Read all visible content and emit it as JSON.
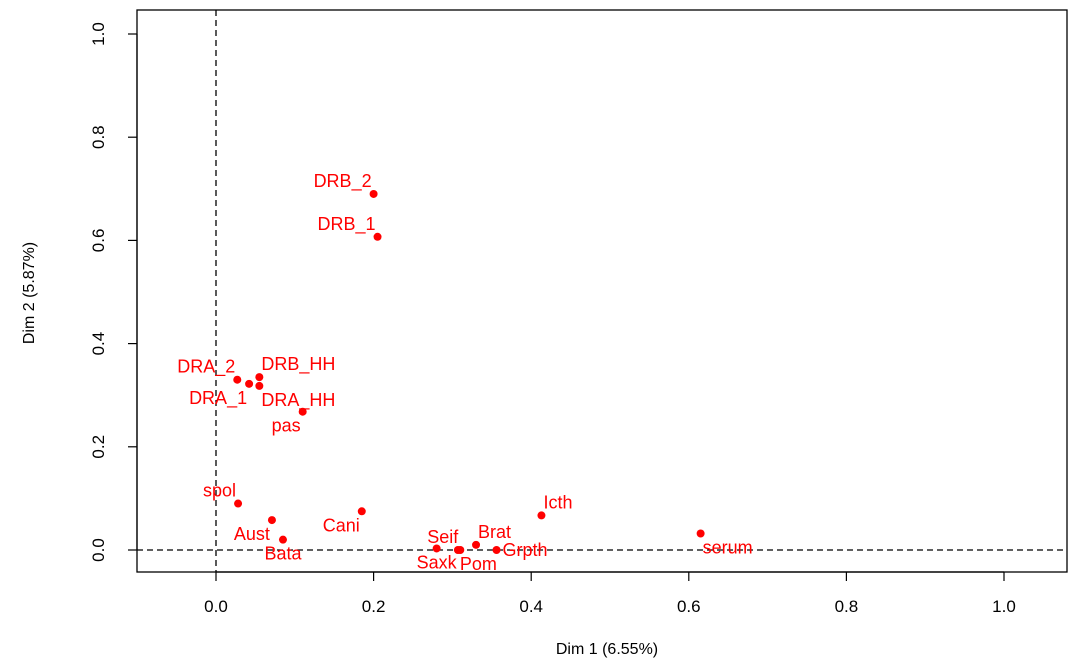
{
  "chart_data": {
    "type": "scatter",
    "title": "",
    "xlabel": "Dim 1 (6.55%)",
    "ylabel": "Dim 2 (5.87%)",
    "xlim": [
      -0.1,
      1.1
    ],
    "ylim": [
      -0.04,
      1.04
    ],
    "xticks": [
      0.0,
      0.2,
      0.4,
      0.6,
      0.8,
      1.0
    ],
    "xtick_labels": [
      "0.0",
      "0.2",
      "0.4",
      "0.6",
      "0.8",
      "1.0"
    ],
    "yticks": [
      0.0,
      0.2,
      0.4,
      0.6,
      0.8,
      1.0
    ],
    "ytick_labels": [
      "0.0",
      "0.2",
      "0.4",
      "0.6",
      "0.8",
      "1.0"
    ],
    "reference_lines": {
      "x": 0,
      "y": 0,
      "style": "dashed"
    },
    "point_color": "#ff0000",
    "points": [
      {
        "label": "DRB_2",
        "x": 0.2,
        "y": 0.69,
        "anchor": "end",
        "side": "above"
      },
      {
        "label": "DRB_1",
        "x": 0.205,
        "y": 0.607,
        "anchor": "end",
        "side": "above"
      },
      {
        "label": "DRA_2",
        "x": 0.027,
        "y": 0.33,
        "anchor": "end",
        "side": "above"
      },
      {
        "label": "DRB_HH",
        "x": 0.055,
        "y": 0.335,
        "anchor": "start",
        "side": "above"
      },
      {
        "label": "DRA_1",
        "x": 0.042,
        "y": 0.322,
        "anchor": "end",
        "side": "below"
      },
      {
        "label": "DRA_HH",
        "x": 0.055,
        "y": 0.318,
        "anchor": "start",
        "side": "below"
      },
      {
        "label": "pas",
        "x": 0.11,
        "y": 0.268,
        "anchor": "end",
        "side": "below"
      },
      {
        "label": "spol",
        "x": 0.028,
        "y": 0.09,
        "anchor": "end",
        "side": "above"
      },
      {
        "label": "Aust",
        "x": 0.071,
        "y": 0.058,
        "anchor": "end",
        "side": "below"
      },
      {
        "label": "Cani",
        "x": 0.185,
        "y": 0.075,
        "anchor": "end",
        "side": "below"
      },
      {
        "label": "Bata",
        "x": 0.085,
        "y": 0.02,
        "anchor": "middle",
        "side": "below"
      },
      {
        "label": "Icth",
        "x": 0.413,
        "y": 0.067,
        "anchor": "start",
        "side": "above"
      },
      {
        "label": "serum",
        "x": 0.615,
        "y": 0.032,
        "anchor": "start",
        "side": "below"
      },
      {
        "label": "Brat",
        "x": 0.33,
        "y": 0.01,
        "anchor": "start",
        "side": "above"
      },
      {
        "label": "Seif",
        "x": 0.31,
        "y": 0.0,
        "anchor": "end",
        "side": "above"
      },
      {
        "label": "Saxk",
        "x": 0.28,
        "y": 0.003,
        "anchor": "middle",
        "side": "below"
      },
      {
        "label": "Pom",
        "x": 0.307,
        "y": 0.0,
        "anchor": "start",
        "side": "below"
      },
      {
        "label": "Grpth",
        "x": 0.356,
        "y": 0.0,
        "anchor": "start",
        "side": "right"
      }
    ]
  }
}
